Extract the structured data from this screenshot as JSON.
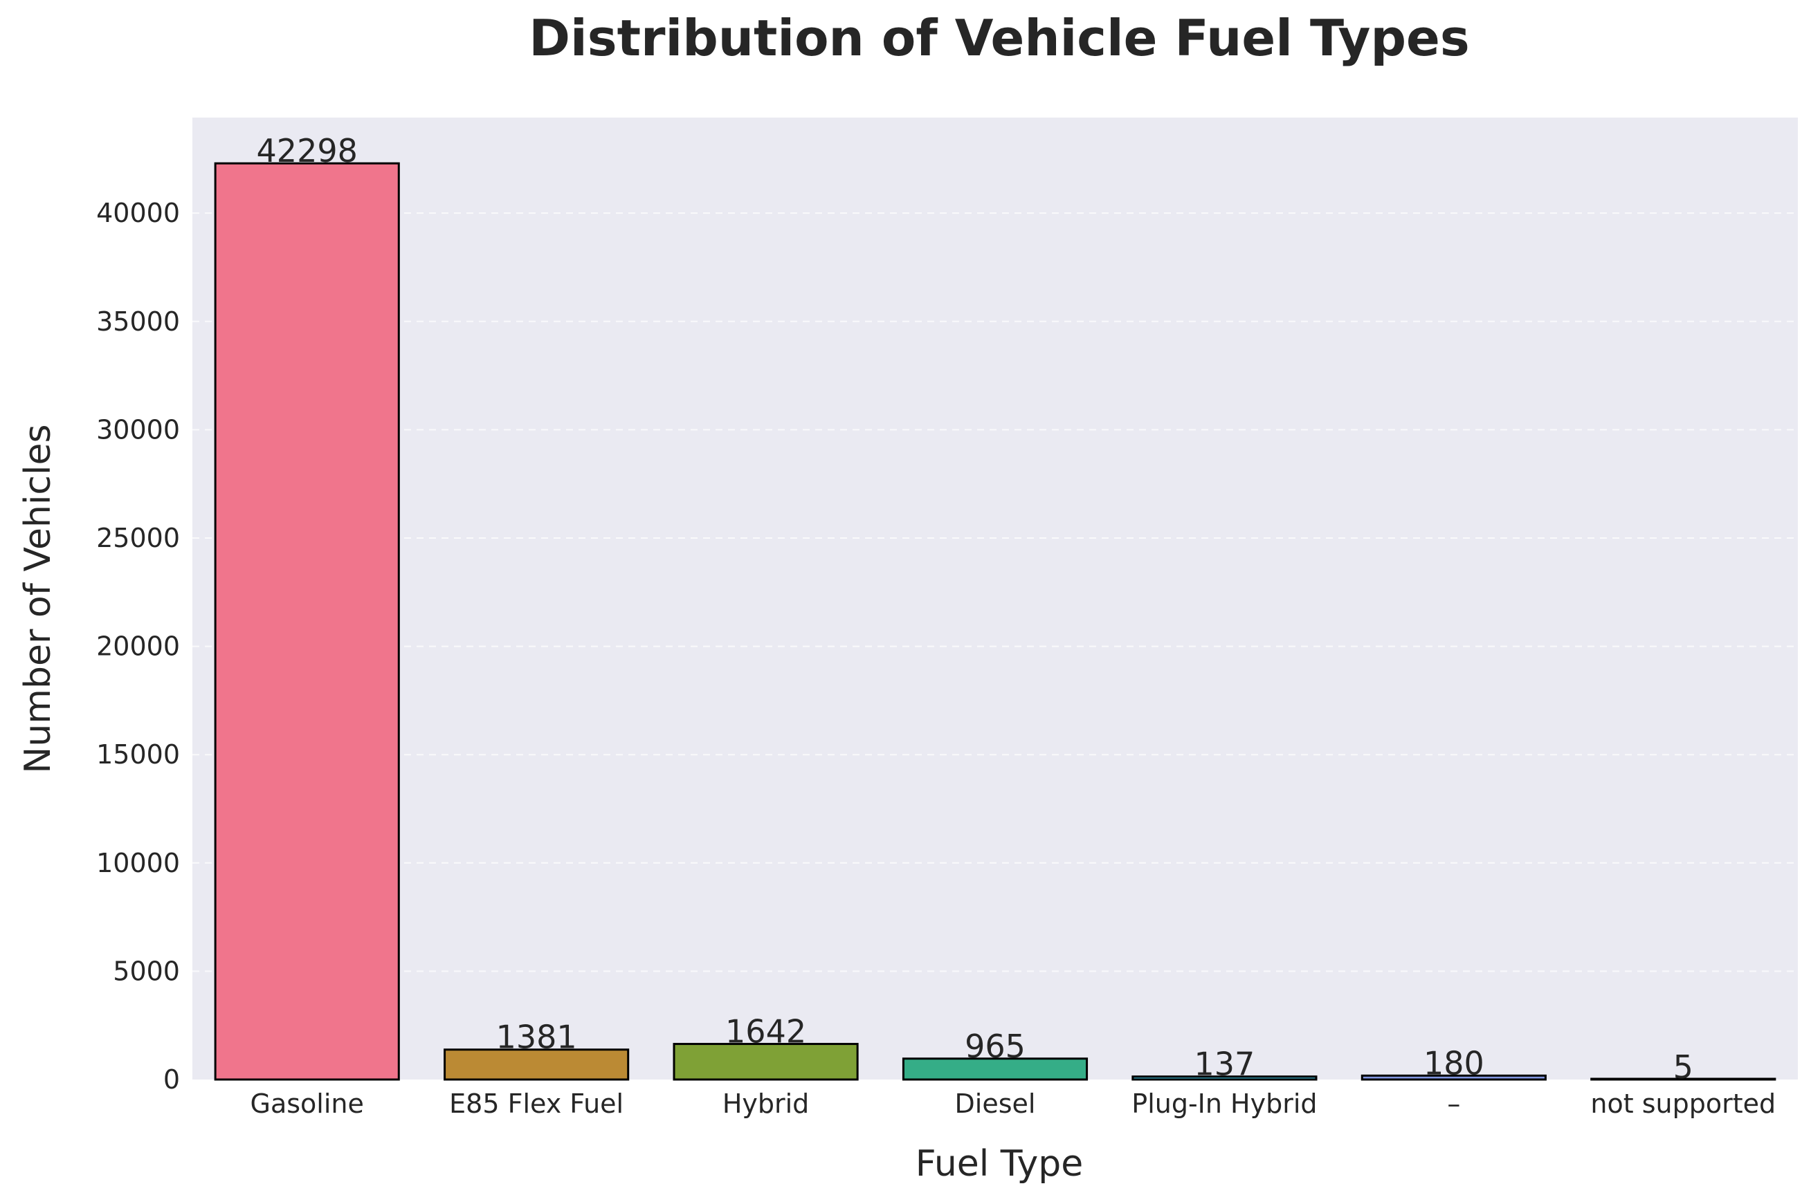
{
  "chart_data": {
    "type": "bar",
    "title": "Distribution of Vehicle Fuel Types",
    "xlabel": "Fuel Type",
    "ylabel": "Number of Vehicles",
    "categories": [
      "Gasoline",
      "E85 Flex Fuel",
      "Hybrid",
      "Diesel",
      "Plug-In Hybrid",
      "–",
      "not supported"
    ],
    "values": [
      42298,
      1381,
      1642,
      965,
      137,
      180,
      5
    ],
    "value_labels": [
      "42298",
      "1381",
      "1642",
      "965",
      "137",
      "180",
      "5"
    ],
    "colors": [
      "#f0758c",
      "#bb8a34",
      "#7fa136",
      "#35ad87",
      "#3aa8c0",
      "#8195e0",
      "#e778d8"
    ],
    "ylim": [
      0,
      44412
    ],
    "yticks": [
      0,
      5000,
      10000,
      15000,
      20000,
      25000,
      30000,
      35000,
      40000
    ],
    "ytick_labels": [
      "0",
      "5000",
      "10000",
      "15000",
      "20000",
      "25000",
      "30000",
      "35000",
      "40000"
    ],
    "grid": true,
    "grid_axis": "y",
    "background_color": "#eaeaf2",
    "bar_edge_color": "#000000"
  }
}
